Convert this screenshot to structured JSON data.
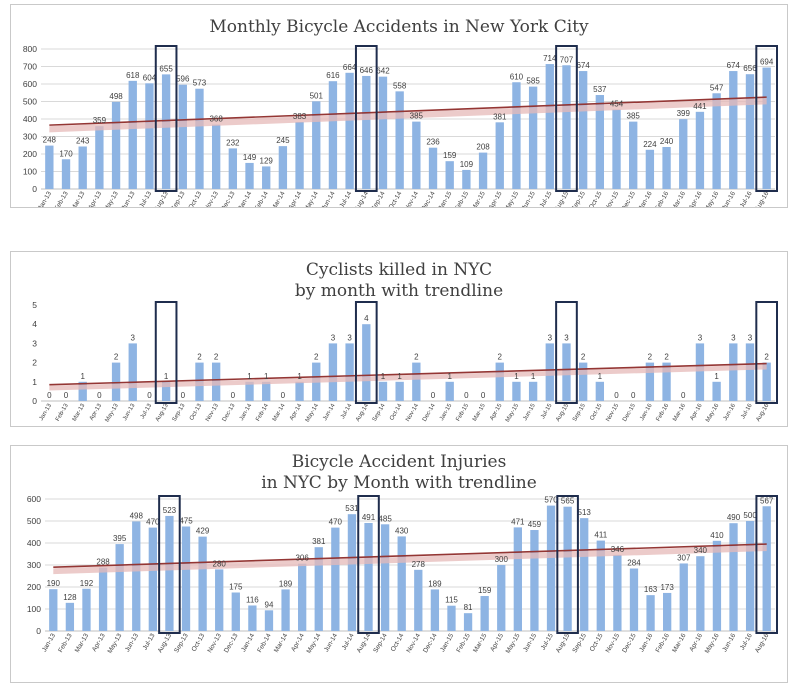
{
  "colors": {
    "bar": "#8eb4e3",
    "trend": "#943634",
    "trend_band": "#e6b9b8",
    "highlight_box": "#1f2d4d",
    "grid": "#d9d9d9",
    "text": "#404040"
  },
  "months": [
    "Jan-13",
    "Feb-13",
    "Mar-13",
    "Apr-13",
    "May-13",
    "Jun-13",
    "Jul-13",
    "Aug-13",
    "Sep-13",
    "Oct-13",
    "Nov-13",
    "Dec-13",
    "Jan-14",
    "Feb-14",
    "Mar-14",
    "Apr-14",
    "May-14",
    "Jun-14",
    "Jul-14",
    "Aug-14",
    "Sep-14",
    "Oct-14",
    "Nov-14",
    "Dec-14",
    "Jan-15",
    "Feb-15",
    "Mar-15",
    "Apr-15",
    "May-15",
    "Jun-15",
    "Jul-15",
    "Aug-15",
    "Sep-15",
    "Oct-15",
    "Nov-15",
    "Dec-15",
    "Jan-16",
    "Feb-16",
    "Mar-16",
    "Apr-16",
    "May-16",
    "Jun-16",
    "Jul-16",
    "Aug-16"
  ],
  "chart_data": [
    {
      "type": "bar",
      "title": "Monthly Bicycle Accidents in New York City",
      "values": [
        248,
        170,
        243,
        359,
        498,
        618,
        604,
        655,
        596,
        573,
        368,
        232,
        149,
        129,
        245,
        383,
        501,
        616,
        664,
        646,
        642,
        558,
        385,
        236,
        159,
        109,
        208,
        381,
        610,
        585,
        714,
        707,
        674,
        537,
        454,
        385,
        224,
        240,
        399,
        441,
        547,
        674,
        656,
        694
      ],
      "ylim": [
        0,
        800
      ],
      "yticks": [
        0,
        100,
        200,
        300,
        400,
        500,
        600,
        700,
        800
      ],
      "grid": true,
      "trendline": [
        365,
        525
      ],
      "highlighted": [
        "Aug-13",
        "Aug-14",
        "Aug-15",
        "Aug-16"
      ]
    },
    {
      "type": "bar",
      "title": "Cyclists killed in NYC\nby month with trendline",
      "values": [
        0,
        0,
        1,
        0,
        2,
        3,
        0,
        1,
        0,
        2,
        2,
        0,
        1,
        1,
        0,
        1,
        2,
        3,
        3,
        4,
        1,
        1,
        2,
        0,
        1,
        0,
        0,
        2,
        1,
        1,
        3,
        3,
        2,
        1,
        0,
        0,
        2,
        2,
        0,
        3,
        1,
        3,
        3,
        2
      ],
      "ylim": [
        0,
        5
      ],
      "yticks": [
        0,
        1,
        2,
        3,
        4,
        5
      ],
      "grid": false,
      "trendline": [
        0.85,
        1.95
      ],
      "highlighted": [
        "Aug-13",
        "Aug-14",
        "Aug-15",
        "Aug-16"
      ]
    },
    {
      "type": "bar",
      "title": "Bicycle Accident Injuries\nin NYC by Month with trendline",
      "values": [
        190,
        128,
        192,
        288,
        395,
        498,
        470,
        523,
        475,
        429,
        280,
        175,
        116,
        94,
        189,
        306,
        381,
        470,
        531,
        491,
        485,
        430,
        278,
        189,
        115,
        81,
        159,
        300,
        471,
        459,
        570,
        565,
        513,
        411,
        346,
        284,
        163,
        173,
        307,
        340,
        410,
        490,
        500,
        567
      ],
      "ylim": [
        0,
        600
      ],
      "yticks": [
        0,
        100,
        200,
        300,
        400,
        500,
        600
      ],
      "grid": true,
      "trendline": [
        290,
        395
      ],
      "highlighted": [
        "Aug-13",
        "Aug-14",
        "Aug-15",
        "Aug-16"
      ]
    }
  ]
}
